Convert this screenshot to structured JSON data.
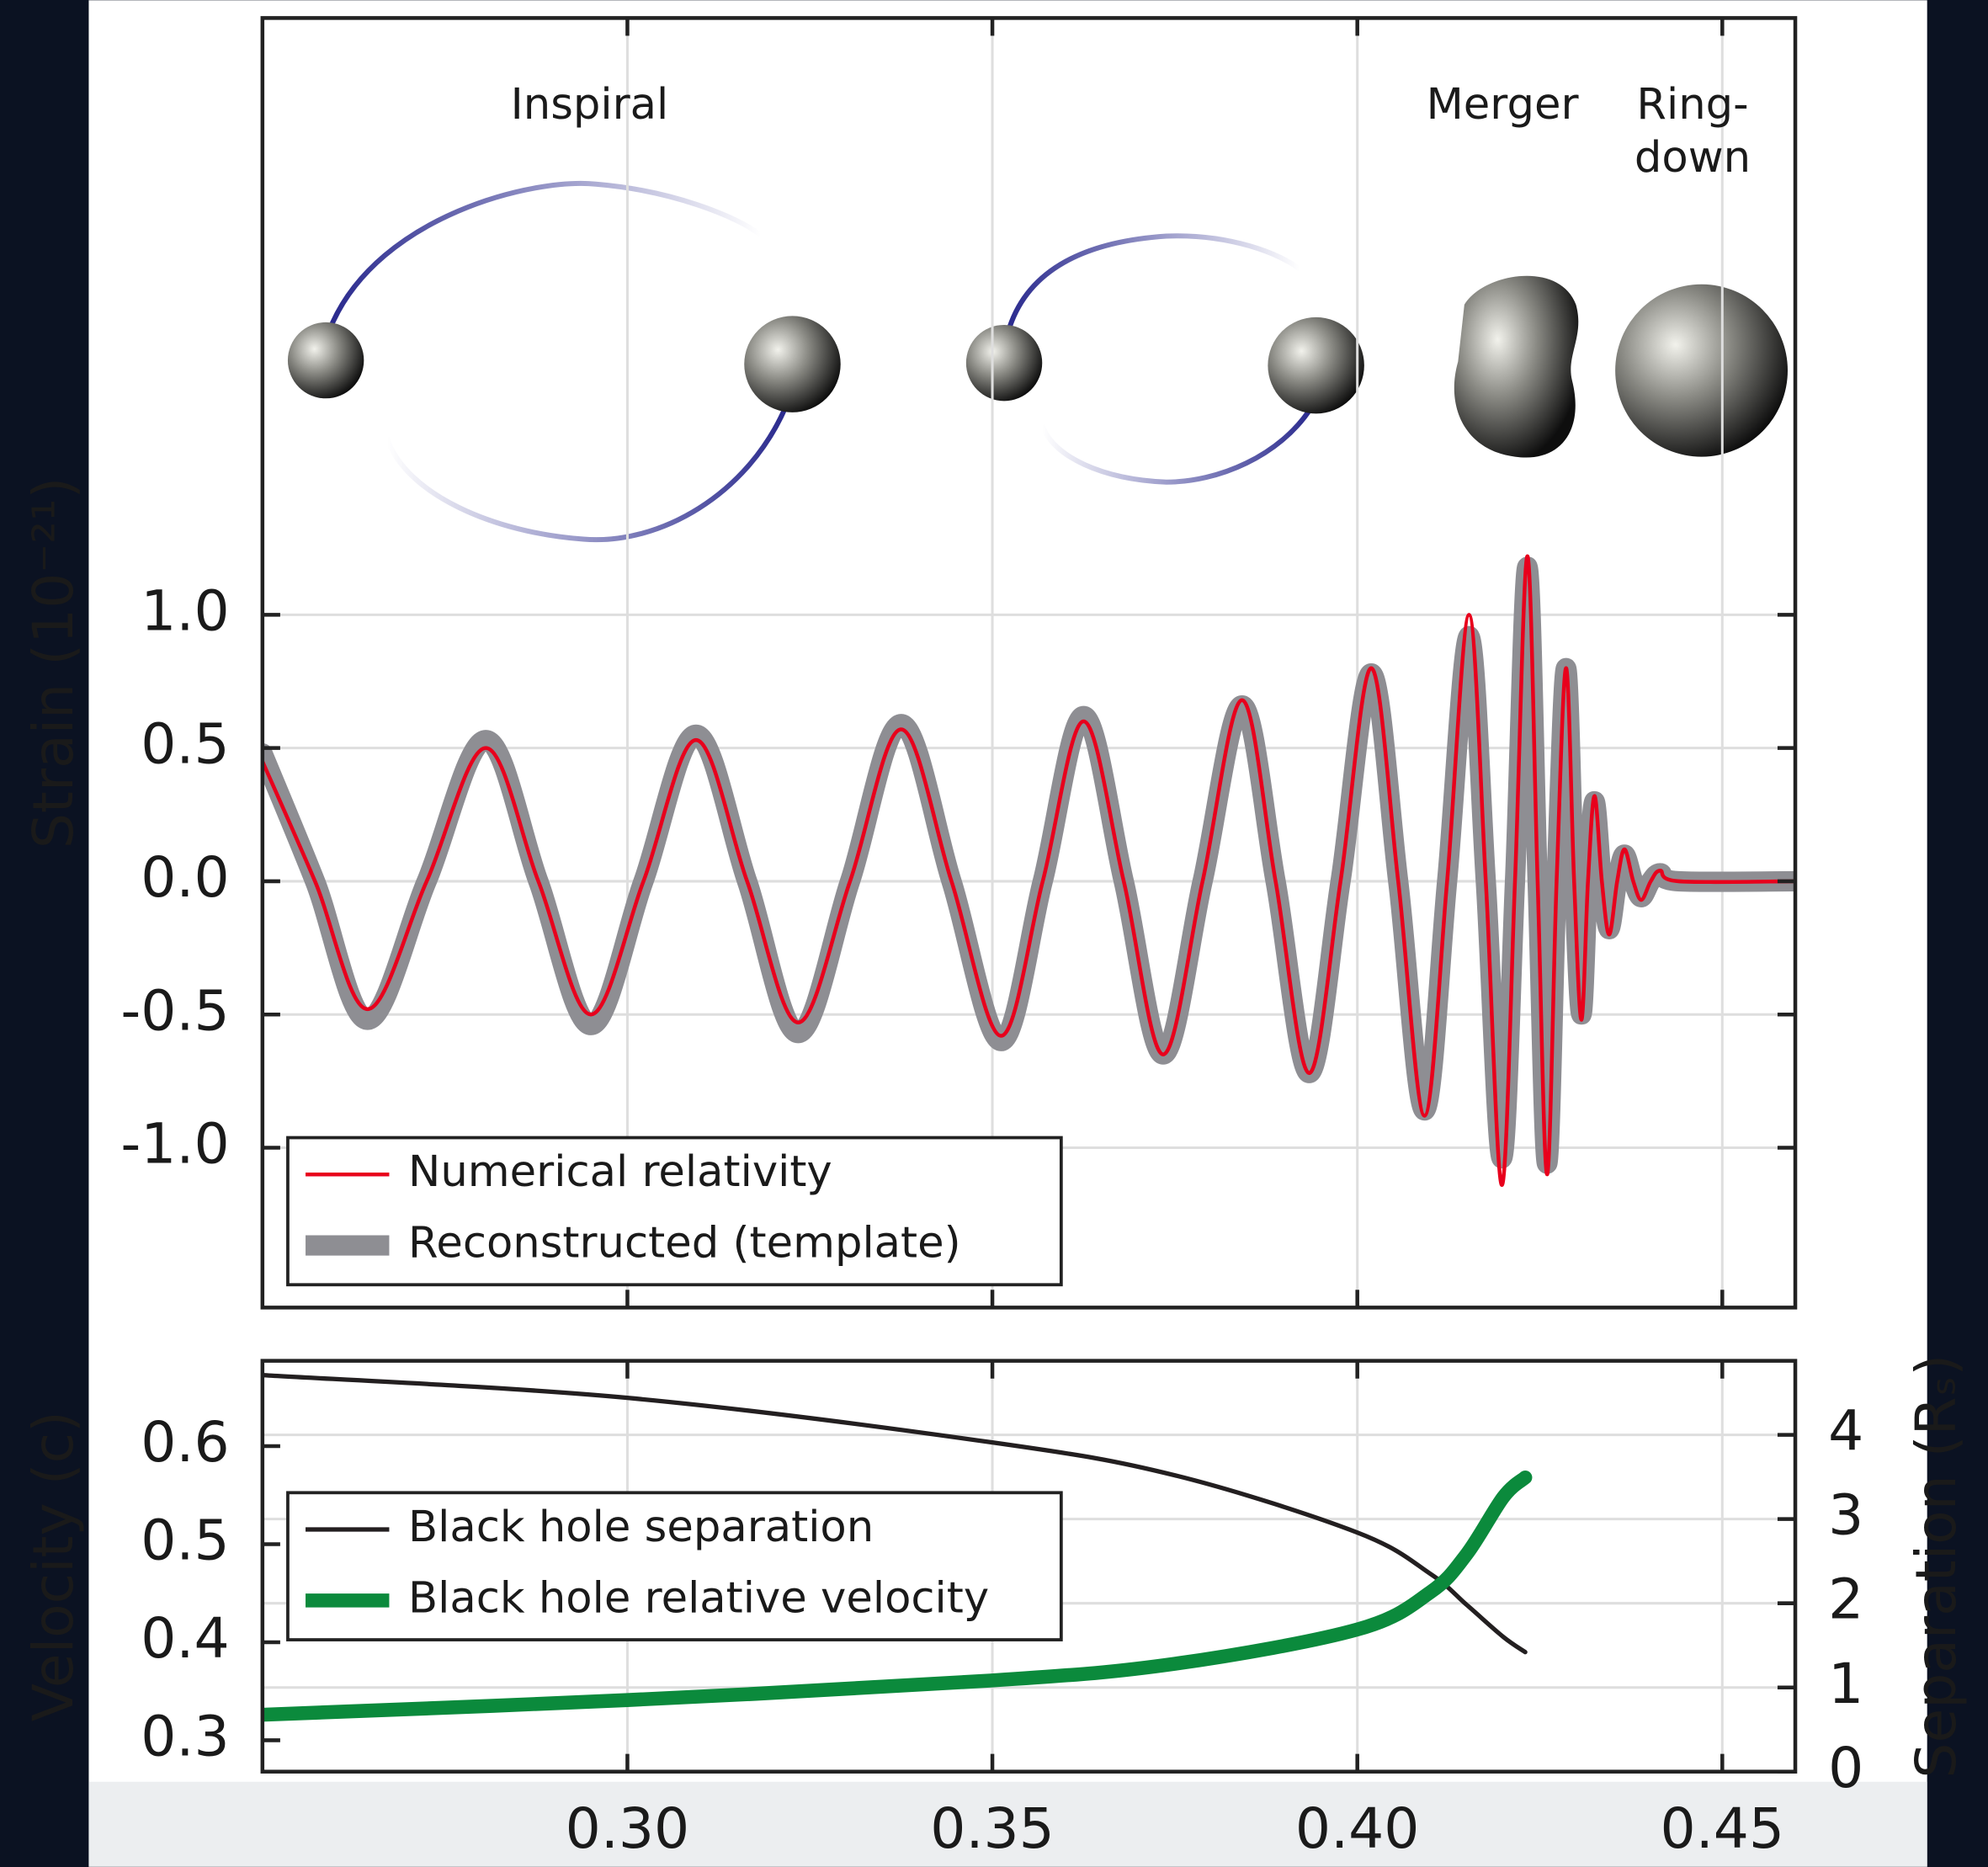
{
  "chart_data": [
    {
      "type": "line",
      "ylabel": "Strain (10⁻²¹)",
      "annotations": [
        "Inspiral",
        "Merger",
        "Ring-",
        "down"
      ],
      "x": [
        0.25,
        0.2572,
        0.2644,
        0.2725,
        0.2806,
        0.2878,
        0.295,
        0.3022,
        0.3094,
        0.3164,
        0.3234,
        0.3305,
        0.3375,
        0.3444,
        0.3512,
        0.3569,
        0.3625,
        0.368,
        0.3734,
        0.3788,
        0.3842,
        0.3888,
        0.3934,
        0.3977,
        0.4019,
        0.4056,
        0.4092,
        0.4123,
        0.4153,
        0.4176,
        0.4198,
        0.4216,
        0.4233,
        0.4247,
        0.426,
        0.4273,
        0.4286,
        0.4297,
        0.4307,
        0.4316,
        0.4325,
        0.4335,
        0.4345,
        0.4356,
        0.4366,
        0.4378,
        0.4389,
        0.4402,
        0.4415,
        0.444,
        0.46
      ],
      "series": [
        {
          "name": "Reconstructed (template)",
          "color": "#8e8e93",
          "width": 16,
          "values": [
            0.48,
            0,
            -0.52,
            0,
            0.53,
            0,
            -0.54,
            0,
            0.55,
            0,
            -0.57,
            0,
            0.59,
            0,
            -0.6,
            0,
            0.62,
            0,
            -0.65,
            0,
            0.66,
            0,
            -0.72,
            0,
            0.78,
            0,
            -0.86,
            0,
            0.92,
            0,
            -1.04,
            0,
            1.18,
            0,
            -1.06,
            0,
            0.8,
            0,
            -0.5,
            0,
            0.3,
            0,
            -0.18,
            0,
            0.1,
            0,
            -0.06,
            0,
            0.03,
            0,
            0
          ]
        },
        {
          "name": "Numerical relativity",
          "color": "#e8001c",
          "width": 3,
          "values": [
            0.45,
            0,
            -0.48,
            0,
            0.5,
            0,
            -0.5,
            0,
            0.53,
            0,
            -0.53,
            0,
            0.57,
            0,
            -0.58,
            0,
            0.6,
            0,
            -0.65,
            0,
            0.68,
            0,
            -0.72,
            0,
            0.8,
            0,
            -0.88,
            0,
            1.0,
            0,
            -1.14,
            0,
            1.22,
            0,
            -1.1,
            0,
            0.8,
            0,
            -0.52,
            0,
            0.32,
            0,
            -0.2,
            0,
            0.12,
            0,
            -0.07,
            0,
            0.04,
            0,
            0
          ]
        }
      ],
      "legend_order": [
        1,
        0
      ],
      "xlim": [
        0.25,
        0.46
      ],
      "ylim": [
        -1.6,
        3.24
      ],
      "xticks": [
        0.3,
        0.35,
        0.4,
        0.45
      ],
      "yticks": [
        {
          "value": -1,
          "label": "-1.0"
        },
        -0.5,
        {
          "value": 0,
          "label": "0.0"
        },
        0.5,
        {
          "value": 1,
          "label": "1.0"
        }
      ],
      "grid": true,
      "legend": "lower left"
    },
    {
      "type": "line",
      "ylabel": "Velocity (c)",
      "y2label": "Separation (Rₛ)",
      "x": [
        0.25,
        0.3,
        0.35,
        0.375,
        0.4,
        0.41,
        0.415,
        0.42,
        0.423
      ],
      "series": [
        {
          "name": "Black hole separation",
          "color": "#231f20",
          "width": 3.5,
          "axis": "y2",
          "values": [
            4.71,
            4.44,
            3.91,
            3.52,
            2.84,
            2.35,
            1.98,
            1.6,
            1.42
          ]
        },
        {
          "name": "Black hole relative velocity",
          "color": "#0b8a3c",
          "width": 11,
          "values": [
            0.326,
            0.341,
            0.361,
            0.378,
            0.413,
            0.451,
            0.49,
            0.548,
            0.568
          ]
        }
      ],
      "legend_order": [
        0,
        1
      ],
      "xlim": [
        0.25,
        0.46
      ],
      "ylim": [
        0.268,
        0.687
      ],
      "y2lim": [
        0,
        4.88
      ],
      "xticks": [
        {
          "value": 0.3,
          "label": "0.30"
        },
        0.35,
        {
          "value": 0.4,
          "label": "0.40"
        },
        0.45
      ],
      "yticks": [
        0.3,
        0.4,
        0.5,
        0.6
      ],
      "y2ticks": [
        0,
        1,
        2,
        3,
        4
      ],
      "grid": true,
      "legend": "center left"
    }
  ]
}
